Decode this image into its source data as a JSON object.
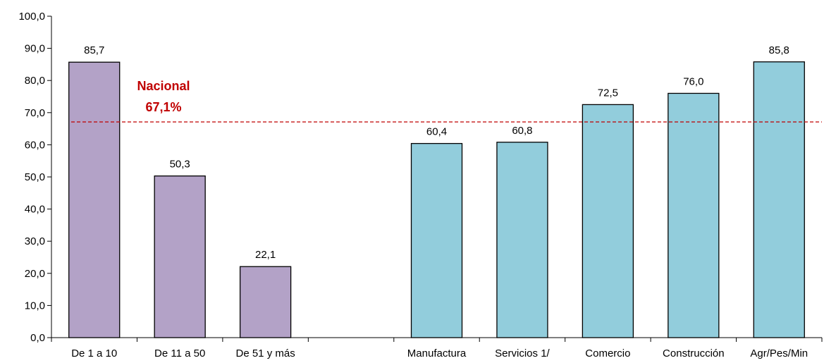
{
  "chart_data": {
    "type": "bar",
    "categories": [
      "De 1 a 10",
      "De 11 a 50",
      "De 51 y más",
      "",
      "Manufactura",
      "Servicios 1/",
      "Comercio",
      "Construcción",
      "Agr/Pes/Min"
    ],
    "values": [
      85.7,
      50.3,
      22.1,
      null,
      60.4,
      60.8,
      72.5,
      76.0,
      85.8
    ],
    "value_labels": [
      "85,7",
      "50,3",
      "22,1",
      "",
      "60,4",
      "60,8",
      "72,5",
      "76,0",
      "85,8"
    ],
    "bar_colors": [
      "#b3a2c7",
      "#b3a2c7",
      "#b3a2c7",
      "",
      "#92cddc",
      "#92cddc",
      "#92cddc",
      "#92cddc",
      "#92cddc"
    ],
    "ylim": [
      0,
      100
    ],
    "yticks": [
      0,
      10,
      20,
      30,
      40,
      50,
      60,
      70,
      80,
      90,
      100
    ],
    "ytick_labels": [
      "0,0",
      "10,0",
      "20,0",
      "30,0",
      "40,0",
      "50,0",
      "60,0",
      "70,0",
      "80,0",
      "90,0",
      "100,0"
    ],
    "reference_line": {
      "value": 67.1,
      "label_line1": "Nacional",
      "label_line2": "67,1%",
      "color": "#c00000"
    },
    "grid": false,
    "legend": "none"
  }
}
